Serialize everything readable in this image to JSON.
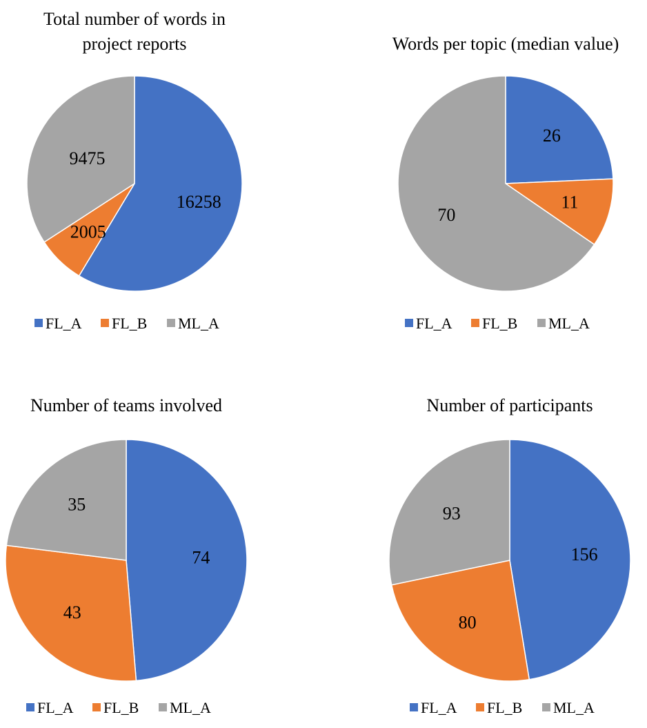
{
  "chart_data": [
    {
      "type": "pie",
      "title": "Total number of words in project reports",
      "title_lines": [
        "Total number of words in",
        "project reports"
      ],
      "categories": [
        "FL_A",
        "FL_B",
        "ML_A"
      ],
      "values": [
        16258,
        2005,
        9475
      ],
      "legend": "bottom"
    },
    {
      "type": "pie",
      "title": "Words per topic (median value)",
      "title_lines": [
        "Words per topic (median value)"
      ],
      "categories": [
        "FL_A",
        "FL_B",
        "ML_A"
      ],
      "values": [
        26,
        11,
        70
      ],
      "legend": "bottom"
    },
    {
      "type": "pie",
      "title": "Number of teams involved",
      "title_lines": [
        "Number of teams involved"
      ],
      "categories": [
        "FL_A",
        "FL_B",
        "ML_A"
      ],
      "values": [
        74,
        43,
        35
      ],
      "legend": "bottom"
    },
    {
      "type": "pie",
      "title": "Number of participants",
      "title_lines": [
        "Number of participants"
      ],
      "categories": [
        "FL_A",
        "FL_B",
        "ML_A"
      ],
      "values": [
        156,
        80,
        93
      ],
      "legend": "bottom"
    }
  ],
  "colors": {
    "FL_A": "#4472c4",
    "FL_B": "#ed7d31",
    "ML_A": "#a5a5a5",
    "slice_border": "#ffffff"
  }
}
